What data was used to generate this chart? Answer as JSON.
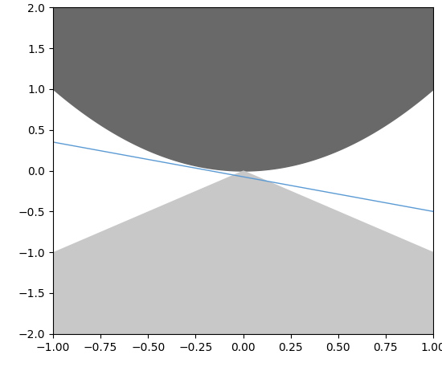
{
  "xlim": [
    -1.0,
    1.0
  ],
  "ylim": [
    -2.0,
    2.0
  ],
  "dark_gray_color": "#696969",
  "light_gray_color": "#c8c8c8",
  "line_color": "#5b9bd5",
  "line_slope": -0.425,
  "line_intercept": -0.075,
  "background_color": "#ffffff",
  "xticks": [
    -1.0,
    -0.75,
    -0.5,
    -0.25,
    0.0,
    0.25,
    0.5,
    0.75,
    1.0
  ],
  "yticks": [
    -2.0,
    -1.5,
    -1.0,
    -0.5,
    0.0,
    0.5,
    1.0,
    1.5,
    2.0
  ],
  "n_points": 2000
}
